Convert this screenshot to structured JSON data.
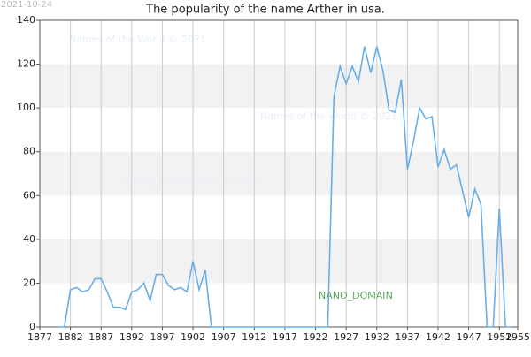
{
  "chart_data": {
    "type": "line",
    "title": "The popularity of the name Arther in usa.",
    "date_stamp": "2021-10-24",
    "watermarks": [
      "Names of the World © 2021",
      "Names of the World © 2021",
      "Names of the World © 2021"
    ],
    "domain_label": "NANO_DOMAIN",
    "x": [
      1880,
      1881,
      1882,
      1883,
      1884,
      1885,
      1886,
      1887,
      1888,
      1889,
      1890,
      1891,
      1892,
      1893,
      1894,
      1895,
      1896,
      1897,
      1898,
      1899,
      1900,
      1901,
      1902,
      1903,
      1904,
      1905,
      1906,
      1907,
      1908,
      1909,
      1910,
      1911,
      1912,
      1913,
      1914,
      1915,
      1916,
      1917,
      1918,
      1919,
      1920,
      1921,
      1922,
      1923,
      1924,
      1925,
      1926,
      1927,
      1928,
      1929,
      1930,
      1931,
      1932,
      1933,
      1934,
      1935,
      1936,
      1937,
      1938,
      1939,
      1940,
      1941,
      1942,
      1943,
      1944,
      1945,
      1946,
      1947,
      1948,
      1949,
      1950,
      1951,
      1952,
      1953,
      1954
    ],
    "series": [
      {
        "name": "Arther",
        "color": "#6aaee8",
        "values": [
          0,
          0,
          17,
          18,
          16,
          17,
          22,
          22,
          16,
          9,
          9,
          8,
          16,
          17,
          20,
          12,
          24,
          24,
          19,
          17,
          18,
          16,
          30,
          17,
          26,
          0,
          0,
          0,
          0,
          0,
          0,
          0,
          0,
          0,
          0,
          0,
          0,
          0,
          0,
          0,
          0,
          0,
          0,
          0,
          0,
          105,
          119,
          111,
          119,
          112,
          128,
          116,
          128,
          117,
          99,
          98,
          113,
          72,
          85,
          100,
          95,
          96,
          73,
          81,
          72,
          74,
          62,
          50,
          63,
          56,
          0,
          0,
          54,
          0,
          0
        ]
      }
    ],
    "xlim": [
      1877,
      1955
    ],
    "xticks": [
      1877,
      1882,
      1887,
      1892,
      1897,
      1902,
      1907,
      1912,
      1917,
      1922,
      1927,
      1932,
      1937,
      1942,
      1947,
      1952,
      1955
    ],
    "ylim": [
      0,
      140
    ],
    "yticks": [
      0,
      20,
      40,
      60,
      80,
      100,
      120,
      140
    ],
    "grid": true
  }
}
